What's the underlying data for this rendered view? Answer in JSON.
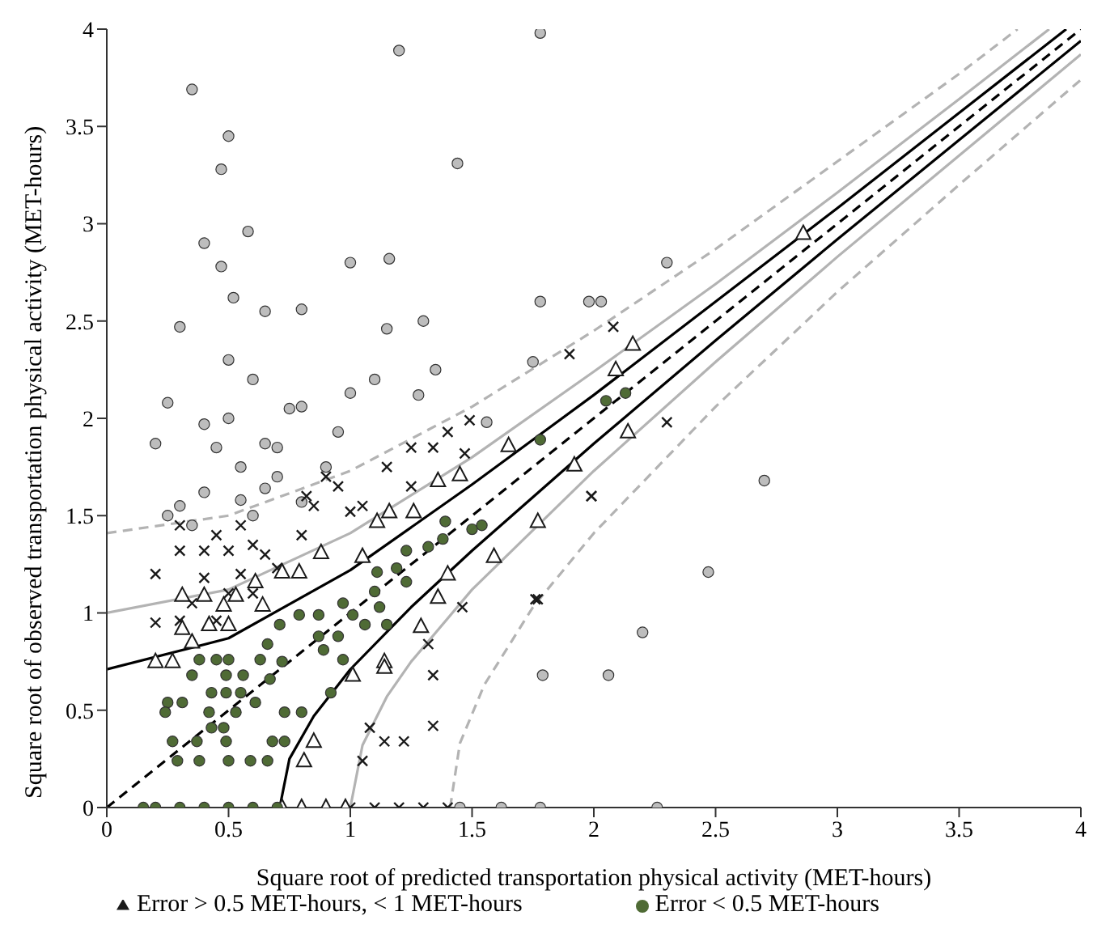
{
  "chart_data": {
    "type": "scatter",
    "xlabel": "Square root of predicted transportation physical activity (MET-hours)",
    "ylabel": "Square root of observed transportation physical activity (MET-hours)",
    "xlim": [
      0,
      4
    ],
    "ylim": [
      0,
      4
    ],
    "xticks": [
      0,
      0.5,
      1,
      1.5,
      2,
      2.5,
      3,
      3.5,
      4
    ],
    "yticks": [
      0,
      0.5,
      1,
      1.5,
      2,
      2.5,
      3,
      3.5,
      4
    ],
    "legend": "bottom",
    "series": [
      {
        "color": "#bdbdbd",
        "marker": "circle",
        "x": [
          0.35,
          0.5,
          0.47,
          1.2,
          1.78,
          0.58,
          0.65,
          0.4,
          0.47,
          0.52,
          0.3,
          0.5,
          0.6,
          0.25,
          0.4,
          0.5,
          0.65,
          0.8,
          1.0,
          1.44,
          1.16,
          1.15,
          1.1,
          1.3,
          1.35,
          1.78,
          1.98,
          2.03,
          2.3,
          1.75,
          1.56,
          1.28,
          1.0,
          0.95,
          0.8,
          0.75,
          0.7,
          0.9,
          0.2,
          0.3,
          0.4,
          0.55,
          0.65,
          0.7,
          0.45,
          0.55,
          0.35,
          0.8,
          0.6,
          0.25,
          2.7,
          2.47,
          2.2,
          2.06,
          1.79,
          1.45,
          1.62,
          1.78,
          2.26
        ],
        "values": [
          3.69,
          3.45,
          3.28,
          3.89,
          3.98,
          2.96,
          2.55,
          2.9,
          2.78,
          2.62,
          2.47,
          2.3,
          2.2,
          2.08,
          1.97,
          2.0,
          1.87,
          2.56,
          2.8,
          3.31,
          2.82,
          2.46,
          2.2,
          2.5,
          2.25,
          2.6,
          2.6,
          2.6,
          2.8,
          2.29,
          1.98,
          2.12,
          2.13,
          1.93,
          2.06,
          2.05,
          1.85,
          1.75,
          1.87,
          1.55,
          1.62,
          1.58,
          1.64,
          1.7,
          1.85,
          1.75,
          1.45,
          1.57,
          1.5,
          1.5,
          1.68,
          1.21,
          0.9,
          0.68,
          0.68,
          0,
          0,
          0,
          0
        ]
      },
      {
        "color": "#1a1a1a",
        "marker": "cross",
        "x": [
          0.3,
          0.2,
          0.3,
          0.4,
          0.45,
          0.5,
          0.55,
          0.6,
          0.65,
          0.7,
          0.8,
          0.85,
          0.9,
          0.95,
          0.82,
          0.4,
          0.5,
          0.35,
          0.55,
          0.6,
          0.3,
          0.45,
          0.2,
          1.0,
          1.05,
          1.15,
          1.25,
          1.4,
          1.25,
          1.49,
          1.34,
          1.47,
          1.99,
          1.76,
          1.46,
          1.32,
          1.34,
          1.34,
          1.08,
          1.14,
          1.22,
          1.05,
          1.77,
          1.99,
          2.3,
          1.9,
          2.08,
          1.0,
          1.1,
          1.2,
          1.3,
          1.4
        ],
        "values": [
          1.45,
          1.2,
          1.32,
          1.32,
          1.4,
          1.32,
          1.45,
          1.35,
          1.3,
          1.23,
          1.4,
          1.55,
          1.7,
          1.65,
          1.6,
          1.18,
          1.1,
          1.05,
          1.2,
          1.1,
          0.96,
          0.96,
          0.95,
          1.52,
          1.55,
          1.75,
          1.85,
          1.93,
          1.65,
          1.99,
          1.85,
          1.82,
          1.6,
          1.07,
          1.03,
          0.84,
          0.68,
          0.42,
          0.41,
          0.34,
          0.34,
          0.24,
          1.07,
          1.6,
          1.98,
          2.33,
          2.47,
          0,
          0,
          0,
          0,
          0
        ]
      },
      {
        "name": "Error > 0.5 MET-hours, < 1 MET-hours",
        "color": "#1a1a1a",
        "marker": "triangle",
        "x": [
          1.65,
          1.92,
          1.77,
          1.59,
          1.4,
          1.36,
          1.29,
          1.14,
          1.14,
          1.01,
          0.85,
          0.81,
          1.36,
          1.45,
          1.16,
          1.26,
          1.11,
          1.05,
          0.88,
          0.79,
          0.72,
          0.61,
          0.53,
          0.4,
          0.31,
          0.31,
          0.42,
          0.5,
          0.35,
          0.2,
          0.27,
          0.48,
          0.64,
          2.86,
          2.16,
          2.09,
          2.14,
          0.72,
          0.8,
          0.9,
          0.98
        ],
        "values": [
          1.86,
          1.76,
          1.47,
          1.29,
          1.2,
          1.08,
          0.93,
          0.75,
          0.72,
          0.68,
          0.34,
          0.24,
          1.68,
          1.71,
          1.52,
          1.52,
          1.47,
          1.29,
          1.31,
          1.21,
          1.21,
          1.16,
          1.09,
          1.09,
          1.09,
          0.92,
          0.94,
          0.94,
          0.85,
          0.75,
          0.75,
          1.04,
          1.04,
          2.95,
          2.38,
          2.25,
          1.93,
          0,
          0,
          0,
          0
        ]
      },
      {
        "name": "Error < 0.5 MET-hours",
        "color": "#4f6b35",
        "marker": "circle",
        "x": [
          1.78,
          2.05,
          2.13,
          1.54,
          1.5,
          1.39,
          1.38,
          1.32,
          1.23,
          1.19,
          1.11,
          1.23,
          1.1,
          0.97,
          1.01,
          1.12,
          1.15,
          1.06,
          0.87,
          0.87,
          0.95,
          0.89,
          0.97,
          0.92,
          0.8,
          0.73,
          0.67,
          0.72,
          0.63,
          0.66,
          0.71,
          0.79,
          0.56,
          0.49,
          0.43,
          0.49,
          0.55,
          0.25,
          0.31,
          0.24,
          0.42,
          0.53,
          0.61,
          0.43,
          0.48,
          0.27,
          0.37,
          0.49,
          0.68,
          0.73,
          0.29,
          0.38,
          0.5,
          0.59,
          0.66,
          0.35,
          0.45,
          0.5,
          0.38,
          0.15,
          0.2,
          0.3,
          0.4,
          0.5,
          0.6,
          0.7
        ],
        "values": [
          1.89,
          2.09,
          2.13,
          1.45,
          1.43,
          1.47,
          1.38,
          1.34,
          1.32,
          1.23,
          1.21,
          1.16,
          1.11,
          1.05,
          0.99,
          1.03,
          0.94,
          0.94,
          0.99,
          0.88,
          0.88,
          0.81,
          0.76,
          0.59,
          0.49,
          0.49,
          0.66,
          0.75,
          0.76,
          0.84,
          0.94,
          0.99,
          0.68,
          0.68,
          0.59,
          0.59,
          0.59,
          0.54,
          0.54,
          0.49,
          0.49,
          0.49,
          0.54,
          0.41,
          0.41,
          0.34,
          0.34,
          0.34,
          0.34,
          0.34,
          0.24,
          0.24,
          0.24,
          0.24,
          0.24,
          0.68,
          0.76,
          0.76,
          0.76,
          0,
          0,
          0,
          0,
          0,
          0,
          0
        ]
      },
      {
        "type": "line",
        "color": "#000000",
        "line_style": "dashed",
        "marker": "none",
        "x": [
          0,
          4
        ],
        "values": [
          0,
          4
        ]
      },
      {
        "type": "line",
        "color": "#000000",
        "line_style": "solid",
        "marker": "none",
        "x": [
          0,
          0.5,
          1,
          1.5,
          2,
          2.5,
          3,
          3.5,
          3.94
        ],
        "values": [
          0.71,
          0.87,
          1.22,
          1.66,
          2.12,
          2.6,
          3.08,
          3.57,
          4
        ]
      },
      {
        "type": "line",
        "color": "#000000",
        "line_style": "solid",
        "marker": "none",
        "x": [
          0.71,
          0.75,
          0.85,
          1,
          1.25,
          1.5,
          2,
          2.5,
          3,
          3.5,
          4
        ],
        "values": [
          0,
          0.25,
          0.47,
          0.71,
          1.03,
          1.32,
          1.87,
          2.4,
          2.92,
          3.43,
          3.94
        ]
      },
      {
        "type": "line",
        "color": "#b3b3b3",
        "line_style": "solid",
        "marker": "none",
        "x": [
          0,
          0.5,
          1,
          1.5,
          2,
          2.5,
          3,
          3.5,
          3.87
        ],
        "values": [
          1,
          1.12,
          1.41,
          1.8,
          2.24,
          2.69,
          3.16,
          3.64,
          4
        ]
      },
      {
        "type": "line",
        "color": "#b3b3b3",
        "line_style": "solid",
        "marker": "none",
        "x": [
          1,
          1.05,
          1.15,
          1.25,
          1.5,
          2,
          2.5,
          3,
          3.5,
          4
        ],
        "values": [
          0,
          0.32,
          0.57,
          0.75,
          1.12,
          1.73,
          2.29,
          2.83,
          3.35,
          3.87
        ]
      },
      {
        "type": "line",
        "color": "#b3b3b3",
        "line_style": "dashed",
        "marker": "none",
        "x": [
          0,
          0.5,
          1,
          1.5,
          2,
          2.5,
          3,
          3.5,
          3.74
        ],
        "values": [
          1.41,
          1.5,
          1.73,
          2.06,
          2.45,
          2.87,
          3.32,
          3.77,
          4
        ]
      },
      {
        "type": "line",
        "color": "#b3b3b3",
        "line_style": "dashed",
        "marker": "none",
        "x": [
          1.41,
          1.45,
          1.55,
          1.75,
          2,
          2.5,
          3,
          3.5,
          4
        ],
        "values": [
          0,
          0.33,
          0.63,
          1.03,
          1.41,
          2.06,
          2.65,
          3.2,
          3.74
        ]
      }
    ]
  }
}
